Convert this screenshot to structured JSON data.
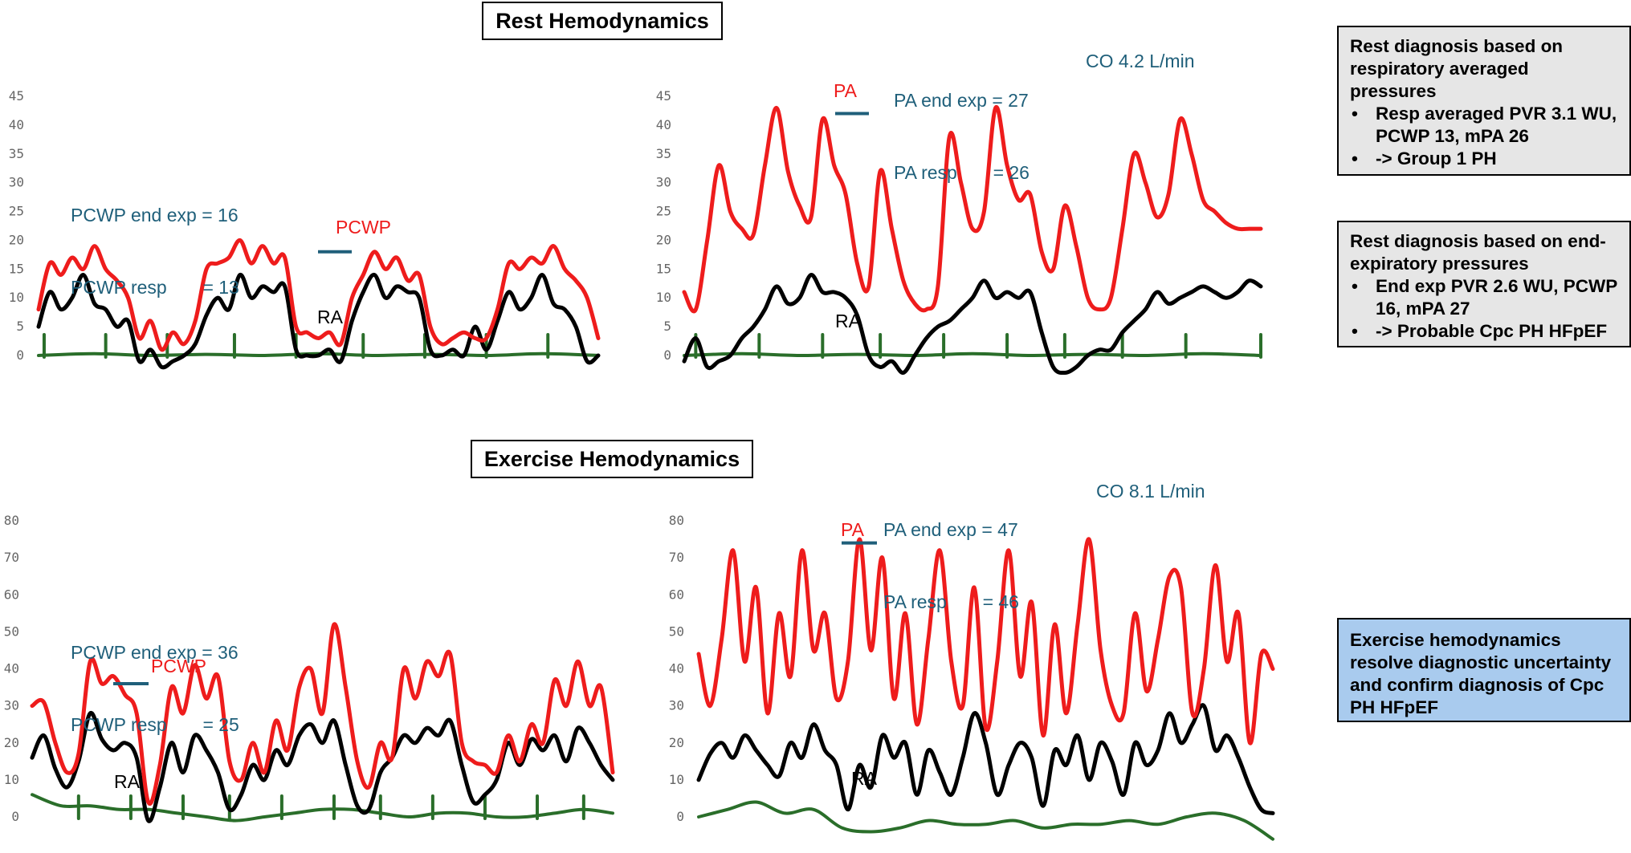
{
  "titles": {
    "rest": "Rest Hemodynamics",
    "exercise": "Exercise Hemodynamics"
  },
  "annotations": {
    "rest_pcwp": {
      "line1": "PCWP end exp = 16",
      "line2": "PCWP resp       = 13"
    },
    "rest_pa": {
      "line1": "PA end exp = 27",
      "line2": "PA resp       = 26"
    },
    "rest_co": "CO 4.2 L/min",
    "ex_pcwp": {
      "line1": "PCWP end exp = 36",
      "line2": "PCWP resp       = 25"
    },
    "ex_pa": {
      "line1": "PA end exp = 47",
      "line2": "PA resp       = 46"
    },
    "ex_co": "CO 8.1 L/min"
  },
  "boxes": {
    "resp": {
      "heading": "Rest diagnosis based on respiratory averaged pressures",
      "items": [
        "Resp averaged PVR 3.1 WU, PCWP 13, mPA 26",
        "-> Group 1 PH"
      ],
      "background": "#e6e6e6"
    },
    "endexp": {
      "heading": "Rest diagnosis based on end-expiratory pressures",
      "items": [
        "End exp PVR 2.6 WU, PCWP 16, mPA 27",
        "-> Probable Cpc PH HFpEF"
      ],
      "background": "#e6e6e6"
    },
    "exercise": {
      "text": "Exercise hemodynamics resolve diagnostic uncertainty and confirm diagnosis of Cpc PH HFpEF",
      "background": "#a9cbee"
    }
  },
  "colors": {
    "red": "#ee1c1c",
    "black": "#000000",
    "green": "#2a6e2a",
    "marker": "#1f5f7a",
    "label_teal": "#1f5f7a"
  },
  "chart_data": [
    {
      "id": "rest-pcwp",
      "type": "line",
      "ylim": [
        0,
        45
      ],
      "yticks": [
        0,
        5,
        10,
        15,
        20,
        25,
        30,
        35,
        40,
        45
      ],
      "marker": {
        "label": "PCWP",
        "value": 18
      },
      "series": [
        {
          "name": "PCWP",
          "color": "#ee1c1c",
          "x": [
            0,
            2,
            4,
            6,
            8,
            10,
            12,
            14,
            16,
            18,
            20,
            22,
            24,
            26,
            28,
            30,
            32,
            34,
            36,
            38,
            40,
            42,
            44,
            46,
            48,
            50,
            52,
            54,
            56,
            58,
            60,
            62,
            64,
            66,
            68,
            70,
            72,
            74,
            76,
            78,
            80,
            82,
            84,
            86,
            88,
            90,
            92,
            94,
            96,
            98,
            100
          ],
          "values": [
            8,
            16,
            14,
            17,
            15,
            19,
            15,
            13,
            10,
            3,
            6,
            1,
            4,
            2,
            6,
            15,
            16,
            17,
            20,
            16,
            19,
            16,
            17,
            5,
            4,
            3,
            4,
            2,
            10,
            14,
            18,
            15,
            17,
            13,
            14,
            5,
            2,
            3,
            4,
            3,
            3,
            8,
            16,
            15,
            17,
            16,
            19,
            15,
            13,
            10,
            3
          ]
        },
        {
          "name": "RA",
          "color": "#000000",
          "x": [
            0,
            2,
            4,
            6,
            8,
            10,
            12,
            14,
            16,
            18,
            20,
            22,
            24,
            26,
            28,
            30,
            32,
            34,
            36,
            38,
            40,
            42,
            44,
            46,
            48,
            50,
            52,
            54,
            56,
            58,
            60,
            62,
            64,
            66,
            68,
            70,
            72,
            74,
            76,
            78,
            80,
            82,
            84,
            86,
            88,
            90,
            92,
            94,
            96,
            98,
            100
          ],
          "values": [
            5,
            11,
            8,
            10,
            14,
            9,
            8,
            5,
            6,
            -1,
            1,
            -2,
            -1,
            0,
            2,
            7,
            10,
            8,
            14,
            10,
            12,
            11,
            12,
            1,
            0,
            0,
            1,
            -1,
            6,
            11,
            14,
            10,
            12,
            11,
            10,
            1,
            0,
            1,
            0,
            5,
            1,
            6,
            11,
            8,
            10,
            14,
            9,
            8,
            5,
            -1,
            0
          ]
        },
        {
          "name": "baseline",
          "color": "#2a6e2a",
          "x": [
            0,
            10,
            20,
            30,
            40,
            50,
            60,
            70,
            80,
            90,
            100
          ],
          "values": [
            0,
            0.3,
            0,
            0.2,
            0,
            0.3,
            0,
            0.2,
            0,
            0.3,
            0
          ],
          "spikes": [
            1,
            12,
            23,
            35,
            46,
            58,
            69,
            80,
            91
          ]
        }
      ]
    },
    {
      "id": "rest-pa",
      "type": "line",
      "ylim": [
        0,
        45
      ],
      "yticks": [
        0,
        5,
        10,
        15,
        20,
        25,
        30,
        35,
        40,
        45
      ],
      "marker": {
        "label": "PA",
        "value": 42
      },
      "series": [
        {
          "name": "PA",
          "color": "#ee1c1c",
          "x": [
            0,
            2,
            4,
            6,
            8,
            10,
            12,
            14,
            16,
            18,
            20,
            22,
            24,
            26,
            28,
            30,
            32,
            34,
            36,
            38,
            40,
            42,
            44,
            46,
            48,
            50,
            52,
            54,
            56,
            58,
            60,
            62,
            64,
            66,
            68,
            70,
            72,
            74,
            76,
            78,
            80,
            82,
            84,
            86,
            88,
            90,
            92,
            94,
            96,
            98,
            100
          ],
          "values": [
            11,
            8,
            20,
            33,
            25,
            22,
            21,
            33,
            43,
            32,
            26,
            24,
            41,
            33,
            28,
            16,
            12,
            32,
            22,
            13,
            9,
            8,
            12,
            38,
            30,
            22,
            25,
            43,
            33,
            27,
            28,
            18,
            15,
            26,
            19,
            10,
            8,
            10,
            22,
            35,
            30,
            24,
            28,
            41,
            35,
            27,
            25,
            23,
            22,
            22,
            22
          ]
        },
        {
          "name": "RA",
          "color": "#000000",
          "x": [
            0,
            2,
            4,
            6,
            8,
            10,
            12,
            14,
            16,
            18,
            20,
            22,
            24,
            26,
            28,
            30,
            32,
            34,
            36,
            38,
            40,
            42,
            44,
            46,
            48,
            50,
            52,
            54,
            56,
            58,
            60,
            62,
            64,
            66,
            68,
            70,
            72,
            74,
            76,
            78,
            80,
            82,
            84,
            86,
            88,
            90,
            92,
            94,
            96,
            98,
            100
          ],
          "values": [
            -1,
            3,
            -2,
            -1,
            0,
            3,
            5,
            8,
            12,
            9,
            10,
            14,
            11,
            11,
            10,
            7,
            0,
            -2,
            -1,
            -3,
            0,
            3,
            5,
            6,
            8,
            10,
            13,
            10,
            11,
            10,
            11,
            4,
            -2,
            -3,
            -2,
            0,
            1,
            1,
            4,
            6,
            8,
            11,
            9,
            10,
            11,
            12,
            11,
            10,
            11,
            13,
            12
          ]
        },
        {
          "name": "baseline",
          "color": "#2a6e2a",
          "x": [
            0,
            10,
            20,
            30,
            40,
            50,
            60,
            70,
            80,
            90,
            100
          ],
          "values": [
            0,
            0.3,
            0,
            0.2,
            0,
            0.3,
            0,
            0.2,
            0,
            0.3,
            0
          ],
          "spikes": [
            2,
            13,
            24,
            34,
            45,
            56,
            66,
            76,
            87,
            100
          ]
        }
      ]
    },
    {
      "id": "ex-pcwp",
      "type": "line",
      "ylim": [
        0,
        80
      ],
      "yticks": [
        0,
        10,
        20,
        30,
        40,
        50,
        60,
        70,
        80
      ],
      "marker": {
        "label": "PCWP",
        "value": 36
      },
      "series": [
        {
          "name": "PCWP",
          "color": "#ee1c1c",
          "x": [
            0,
            2,
            4,
            6,
            8,
            10,
            12,
            14,
            16,
            18,
            20,
            22,
            24,
            26,
            28,
            30,
            32,
            34,
            36,
            38,
            40,
            42,
            44,
            46,
            48,
            50,
            52,
            54,
            56,
            58,
            60,
            62,
            64,
            66,
            68,
            70,
            72,
            74,
            76,
            78,
            80,
            82,
            84,
            86,
            88,
            90,
            92,
            94,
            96,
            98,
            100
          ],
          "values": [
            30,
            31,
            20,
            12,
            17,
            42,
            36,
            38,
            33,
            28,
            4,
            14,
            35,
            28,
            41,
            32,
            38,
            15,
            10,
            20,
            12,
            26,
            18,
            35,
            40,
            28,
            52,
            35,
            15,
            8,
            20,
            16,
            40,
            32,
            42,
            38,
            44,
            20,
            15,
            14,
            12,
            22,
            15,
            25,
            20,
            37,
            30,
            42,
            30,
            35,
            12
          ]
        },
        {
          "name": "RA",
          "color": "#000000",
          "x": [
            0,
            2,
            4,
            6,
            8,
            10,
            12,
            14,
            16,
            18,
            20,
            22,
            24,
            26,
            28,
            30,
            32,
            34,
            36,
            38,
            40,
            42,
            44,
            46,
            48,
            50,
            52,
            54,
            56,
            58,
            60,
            62,
            64,
            66,
            68,
            70,
            72,
            74,
            76,
            78,
            80,
            82,
            84,
            86,
            88,
            90,
            92,
            94,
            96,
            98,
            100
          ],
          "values": [
            16,
            22,
            13,
            8,
            15,
            28,
            21,
            18,
            20,
            16,
            -1,
            8,
            20,
            12,
            22,
            18,
            12,
            2,
            6,
            14,
            10,
            18,
            14,
            22,
            25,
            20,
            26,
            14,
            3,
            2,
            12,
            16,
            22,
            20,
            24,
            22,
            26,
            14,
            4,
            6,
            10,
            20,
            14,
            21,
            18,
            22,
            15,
            24,
            20,
            14,
            10
          ]
        },
        {
          "name": "baseline",
          "color": "#2a6e2a",
          "x": [
            0,
            5,
            10,
            15,
            20,
            25,
            30,
            35,
            40,
            45,
            50,
            55,
            60,
            65,
            70,
            75,
            80,
            85,
            90,
            95,
            100
          ],
          "values": [
            6,
            3,
            3,
            2,
            2,
            1,
            0,
            -1,
            0,
            1,
            2,
            2,
            1,
            0,
            1,
            1,
            0,
            0,
            1,
            2,
            1
          ],
          "spikes": [
            8,
            17,
            26,
            34,
            43,
            52,
            60,
            69,
            78,
            87,
            95
          ]
        }
      ]
    },
    {
      "id": "ex-pa",
      "type": "line",
      "ylim": [
        0,
        80
      ],
      "yticks": [
        0,
        10,
        20,
        30,
        40,
        50,
        60,
        70,
        80
      ],
      "marker": {
        "label": "PA",
        "value": 74
      },
      "series": [
        {
          "name": "PA",
          "color": "#ee1c1c",
          "x": [
            0,
            2,
            4,
            6,
            8,
            10,
            12,
            14,
            16,
            18,
            20,
            22,
            24,
            26,
            28,
            30,
            32,
            34,
            36,
            38,
            40,
            42,
            44,
            46,
            48,
            50,
            52,
            54,
            56,
            58,
            60,
            62,
            64,
            66,
            68,
            70,
            72,
            74,
            76,
            78,
            80,
            82,
            84,
            86,
            88,
            90,
            92,
            94,
            96,
            98,
            100
          ],
          "values": [
            44,
            30,
            48,
            72,
            42,
            62,
            28,
            55,
            38,
            72,
            45,
            55,
            32,
            42,
            75,
            45,
            70,
            32,
            55,
            25,
            48,
            72,
            42,
            30,
            62,
            24,
            42,
            72,
            38,
            58,
            22,
            52,
            28,
            52,
            75,
            45,
            30,
            28,
            55,
            34,
            48,
            65,
            62,
            28,
            40,
            68,
            42,
            55,
            20,
            44,
            40
          ]
        },
        {
          "name": "RA",
          "color": "#000000",
          "x": [
            0,
            2,
            4,
            6,
            8,
            10,
            12,
            14,
            16,
            18,
            20,
            22,
            24,
            26,
            28,
            30,
            32,
            34,
            36,
            38,
            40,
            42,
            44,
            46,
            48,
            50,
            52,
            54,
            56,
            58,
            60,
            62,
            64,
            66,
            68,
            70,
            72,
            74,
            76,
            78,
            80,
            82,
            84,
            86,
            88,
            90,
            92,
            94,
            96,
            98,
            100
          ],
          "values": [
            10,
            17,
            20,
            16,
            22,
            18,
            14,
            11,
            20,
            16,
            25,
            18,
            14,
            2,
            14,
            8,
            22,
            16,
            20,
            6,
            18,
            12,
            6,
            16,
            28,
            20,
            6,
            14,
            20,
            16,
            3,
            18,
            14,
            22,
            10,
            20,
            15,
            6,
            20,
            14,
            18,
            28,
            20,
            25,
            30,
            18,
            22,
            16,
            8,
            2,
            1
          ]
        },
        {
          "name": "baseline",
          "color": "#2a6e2a",
          "x": [
            0,
            5,
            10,
            15,
            20,
            25,
            30,
            35,
            40,
            45,
            50,
            55,
            60,
            65,
            70,
            75,
            80,
            85,
            90,
            95,
            100
          ],
          "values": [
            0,
            2,
            4,
            1,
            2,
            -3,
            -4,
            -3,
            -1,
            -2,
            -2,
            -1,
            -3,
            -2,
            -2,
            -1,
            -2,
            0,
            1,
            -1,
            -6
          ],
          "spikes": []
        }
      ]
    }
  ]
}
